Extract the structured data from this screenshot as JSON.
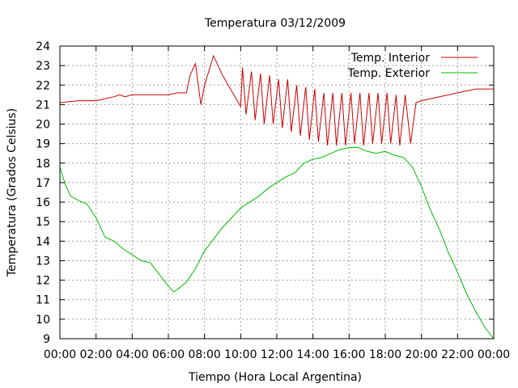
{
  "chart_data": {
    "type": "line",
    "title": "Temperatura 03/12/2009",
    "xlabel": "Tiempo (Hora Local Argentina)",
    "ylabel": "Temperatura (Grados Celsius)",
    "xlim": [
      0,
      24
    ],
    "ylim": [
      9,
      24
    ],
    "x_ticks": [
      "00:00",
      "02:00",
      "04:00",
      "06:00",
      "08:00",
      "10:00",
      "12:00",
      "14:00",
      "16:00",
      "18:00",
      "20:00",
      "22:00",
      "00:00"
    ],
    "y_ticks": [
      "9",
      "10",
      "11",
      "12",
      "13",
      "14",
      "15",
      "16",
      "17",
      "18",
      "19",
      "20",
      "21",
      "22",
      "23",
      "24"
    ],
    "grid": true,
    "legend_position": "top-right",
    "series": [
      {
        "name": "Temp. Interior",
        "color": "#cc0000",
        "x": [
          0,
          1,
          2,
          3,
          3.3,
          3.6,
          4,
          5,
          6,
          6.5,
          7,
          7.2,
          7.5,
          7.8,
          8,
          8.5,
          9,
          10,
          10.1,
          10.3,
          10.6,
          10.8,
          11.1,
          11.3,
          11.6,
          11.8,
          12.1,
          12.3,
          12.6,
          12.8,
          13.1,
          13.3,
          13.6,
          13.8,
          14.1,
          14.3,
          14.6,
          14.8,
          15.1,
          15.3,
          15.6,
          15.8,
          16.1,
          16.3,
          16.6,
          16.8,
          17.1,
          17.3,
          17.6,
          17.8,
          18.1,
          18.3,
          18.6,
          18.8,
          19.1,
          19.4,
          19.7,
          20,
          21,
          22,
          23,
          24
        ],
        "y": [
          21.1,
          21.2,
          21.2,
          21.4,
          21.5,
          21.4,
          21.5,
          21.5,
          21.5,
          21.6,
          21.6,
          22.5,
          23.1,
          21,
          22,
          23.5,
          22.5,
          20.9,
          22.9,
          20.5,
          22.7,
          20.2,
          22.6,
          20,
          22.5,
          20,
          22.3,
          19.8,
          22.3,
          19.6,
          22,
          19.4,
          21.9,
          19.2,
          21.8,
          19.1,
          21.6,
          18.9,
          21.6,
          18.9,
          21.6,
          18.9,
          21.6,
          19,
          21.6,
          18.9,
          21.6,
          19,
          21.6,
          19,
          21.6,
          19,
          21.5,
          18.9,
          21.5,
          19,
          21.1,
          21.2,
          21.4,
          21.6,
          21.8,
          21.8
        ]
      },
      {
        "name": "Temp. Exterior",
        "color": "#00bb00",
        "x": [
          0,
          0.3,
          0.6,
          1,
          1.5,
          2,
          2.5,
          3,
          3.5,
          4,
          4.5,
          5,
          5.5,
          6,
          6.3,
          6.6,
          7,
          7.5,
          8,
          8.5,
          9,
          9.5,
          10,
          10.5,
          11,
          11.5,
          12,
          12.5,
          13,
          13.5,
          14,
          14.5,
          15,
          15.5,
          16,
          16.5,
          17,
          17.5,
          18,
          18.5,
          19,
          19.5,
          20,
          20.5,
          21,
          21.5,
          22,
          22.5,
          23,
          23.5,
          24
        ],
        "y": [
          17.8,
          16.9,
          16.3,
          16.1,
          15.9,
          15.2,
          14.2,
          14,
          13.6,
          13.3,
          13,
          12.9,
          12.3,
          11.7,
          11.4,
          11.6,
          11.9,
          12.6,
          13.5,
          14.1,
          14.7,
          15.2,
          15.7,
          16,
          16.3,
          16.7,
          17,
          17.3,
          17.5,
          18,
          18.2,
          18.3,
          18.5,
          18.7,
          18.8,
          18.8,
          18.6,
          18.5,
          18.6,
          18.4,
          18.3,
          17.8,
          16.8,
          15.6,
          14.6,
          13.4,
          12.4,
          11.3,
          10.4,
          9.6,
          9
        ]
      }
    ]
  }
}
